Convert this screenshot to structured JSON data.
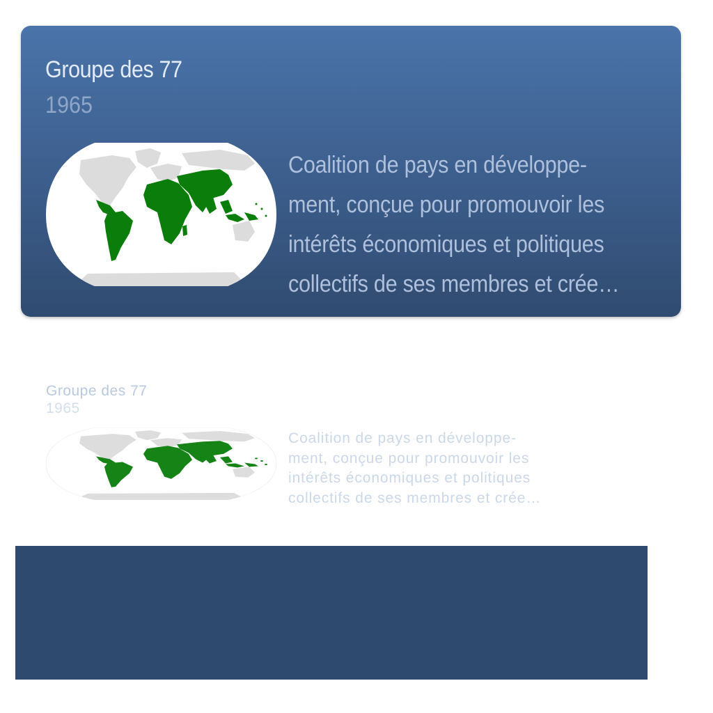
{
  "card": {
    "title": "Groupe des 77",
    "year": "1965",
    "description_lines": [
      "Coalition de pays en développe-",
      "ment, conçue pour promouvoir les",
      "intérêts économiques et politiques",
      "collectifs de ses membres et crée…"
    ],
    "map_icon": "world-map-member-states",
    "colors": {
      "card_top": "#4a74aa",
      "card_bottom": "#304b70",
      "member_countries": "#0a7d0a",
      "non_member_land": "#dcdcdc"
    }
  },
  "reflection": {
    "title": "Groupe des 77",
    "year": "1965",
    "description_lines": [
      "Coalition de pays en développe-",
      "ment, conçue pour promouvoir les",
      "intérêts économiques et politiques",
      "collectifs de ses membres et crée…"
    ]
  },
  "bottom_panel": {
    "color": "#2e4a6e"
  }
}
